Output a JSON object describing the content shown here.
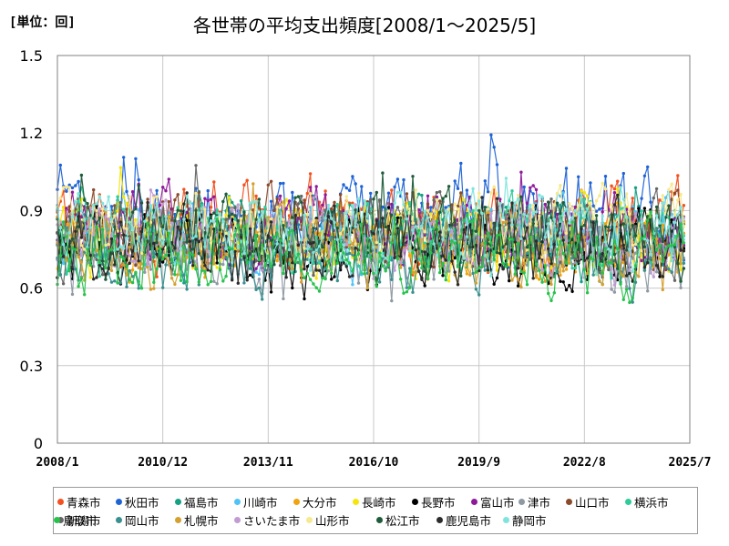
{
  "unit_label": "[単位：回]",
  "title": "各世帯の平均支出頻度[2008/1～2025/5]",
  "chart_data": {
    "type": "line",
    "title": "各世帯の平均支出頻度[2008/1～2025/5]",
    "unit": "[単位：回]",
    "ylim": [
      0,
      1.5
    ],
    "y_ticks": [
      "0",
      "0.3",
      "0.6",
      "0.9",
      "1.2",
      "1.5"
    ],
    "x_ticks": [
      "2008/1",
      "2010/12",
      "2013/11",
      "2016/10",
      "2019/9",
      "2022/8",
      "2025/7"
    ],
    "x_range": [
      "2008/1",
      "2025/7"
    ],
    "grid": true,
    "legend_position": "bottom",
    "series": [
      {
        "name": "青森市",
        "color": "#f4511e",
        "level": 0.84,
        "amp": 0.13
      },
      {
        "name": "秋田市",
        "color": "#1e63d6",
        "level": 0.88,
        "amp": 0.15
      },
      {
        "name": "福島市",
        "color": "#16a085",
        "level": 0.8,
        "amp": 0.12
      },
      {
        "name": "川崎市",
        "color": "#4fc3f7",
        "level": 0.82,
        "amp": 0.12
      },
      {
        "name": "大分市",
        "color": "#f0a30a",
        "level": 0.78,
        "amp": 0.12
      },
      {
        "name": "長崎市",
        "color": "#f5e50a",
        "level": 0.8,
        "amp": 0.12
      },
      {
        "name": "長野市",
        "color": "#000000",
        "level": 0.74,
        "amp": 0.13
      },
      {
        "name": "富山市",
        "color": "#8e1a9a",
        "level": 0.84,
        "amp": 0.12
      },
      {
        "name": "津市",
        "color": "#8e99a3",
        "level": 0.74,
        "amp": 0.12
      },
      {
        "name": "山口市",
        "color": "#8b4a2b",
        "level": 0.84,
        "amp": 0.12
      },
      {
        "name": "横浜市",
        "color": "#2ecc9a",
        "level": 0.8,
        "amp": 0.12
      },
      {
        "name": "新潟市",
        "color": "#666666",
        "level": 0.8,
        "amp": 0.12
      },
      {
        "name": "岡山市",
        "color": "#3a8f8f",
        "level": 0.72,
        "amp": 0.12
      },
      {
        "name": "札幌市",
        "color": "#d4a030",
        "level": 0.74,
        "amp": 0.12
      },
      {
        "name": "さいたま市",
        "color": "#c39bd3",
        "level": 0.78,
        "amp": 0.12
      },
      {
        "name": "山形市",
        "color": "#f7e98e",
        "level": 0.84,
        "amp": 0.12
      },
      {
        "name": "松江市",
        "color": "#1e5b3a",
        "level": 0.8,
        "amp": 0.12
      },
      {
        "name": "鹿児島市",
        "color": "#2b2b2b",
        "level": 0.76,
        "amp": 0.13
      },
      {
        "name": "静岡市",
        "color": "#7fe5dc",
        "level": 0.82,
        "amp": 0.12
      },
      {
        "name": "鳥取市",
        "color": "#27c24c",
        "level": 0.72,
        "amp": 0.12
      }
    ]
  }
}
